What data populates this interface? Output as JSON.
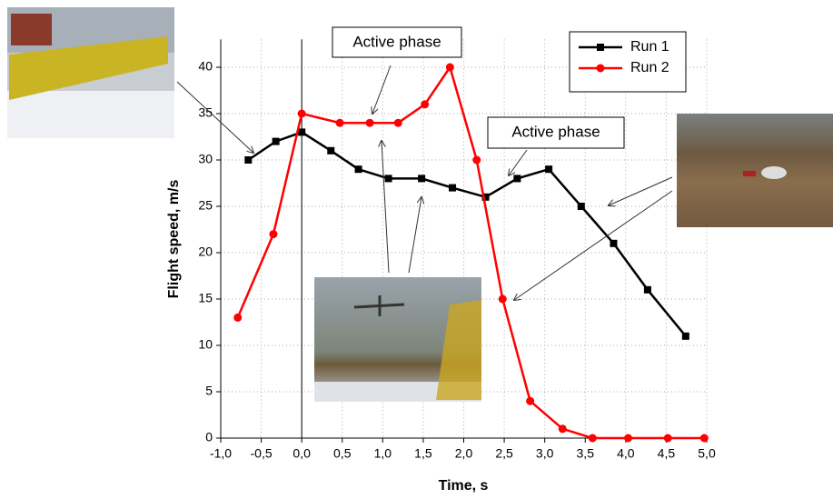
{
  "chart_data": {
    "type": "line",
    "xlabel": "Time, s",
    "ylabel": "Flight speed, m/s",
    "annotations": [
      "Active phase",
      "Active phase"
    ],
    "series": [
      {
        "name": "Run 1",
        "color": "#000000",
        "marker": "square",
        "x": [
          -0.66,
          -0.32,
          0.0,
          0.36,
          0.7,
          1.07,
          1.48,
          1.86,
          2.27,
          2.66,
          3.05,
          3.45,
          3.85,
          4.27,
          4.74
        ],
        "values": [
          30,
          32,
          33,
          31,
          29,
          28,
          28,
          27,
          26,
          28,
          29,
          25,
          21,
          16,
          11
        ]
      },
      {
        "name": "Run 2",
        "color": "#ff0000",
        "marker": "circle",
        "x": [
          -0.79,
          -0.35,
          0.0,
          0.47,
          0.84,
          1.19,
          1.52,
          1.83,
          2.16,
          2.48,
          2.82,
          3.22,
          3.59,
          4.03,
          4.52,
          4.97
        ],
        "values": [
          13,
          22,
          35,
          34,
          34,
          34,
          36,
          40,
          30,
          15,
          4,
          1,
          0,
          0,
          0,
          0
        ]
      }
    ],
    "xlim": [
      -1,
      5
    ],
    "ylim": [
      0,
      43
    ],
    "xticks": [
      {
        "value": -1,
        "label": "-1,0"
      },
      {
        "value": -0.5,
        "label": "-0,5"
      },
      {
        "value": 0,
        "label": "0,0"
      },
      {
        "value": 0.5,
        "label": "0,5"
      },
      {
        "value": 1,
        "label": "1,0"
      },
      {
        "value": 1.5,
        "label": "1,5"
      },
      {
        "value": 2,
        "label": "2,0"
      },
      {
        "value": 2.5,
        "label": "2,5"
      },
      {
        "value": 3,
        "label": "3,0"
      },
      {
        "value": 3.5,
        "label": "3,5"
      },
      {
        "value": 4,
        "label": "4,0"
      },
      {
        "value": 4.5,
        "label": "4,5"
      },
      {
        "value": 5,
        "label": "5,0"
      }
    ],
    "yticks": [
      0,
      5,
      10,
      15,
      20,
      25,
      30,
      35,
      40
    ],
    "grid": true,
    "legend": "upper right"
  }
}
